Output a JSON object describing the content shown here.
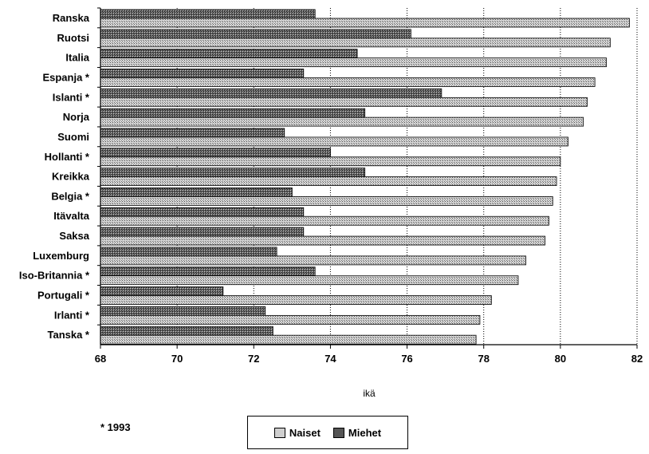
{
  "chart_data": {
    "type": "bar",
    "orientation": "horizontal",
    "xlabel": "ikä",
    "xlim": [
      68,
      82
    ],
    "xticks": [
      68,
      70,
      72,
      74,
      76,
      78,
      80,
      82
    ],
    "grid": "vertical dotted",
    "categories": [
      "Ranska",
      "Ruotsi",
      "Italia",
      "Espanja *",
      "Islanti *",
      "Norja",
      "Suomi",
      "Hollanti *",
      "Kreikka",
      "Belgia *",
      "Itävalta",
      "Saksa",
      "Luxemburg",
      "Iso-Britannia *",
      "Portugali *",
      "Irlanti *",
      "Tanska *"
    ],
    "series": [
      {
        "name": "Naiset",
        "color": "#b8b8b8",
        "values": [
          81.8,
          81.3,
          81.2,
          80.9,
          80.7,
          80.6,
          80.2,
          80.0,
          79.9,
          79.8,
          79.7,
          79.6,
          79.1,
          78.9,
          78.2,
          77.9,
          77.8
        ]
      },
      {
        "name": "Miehet",
        "color": "#4a4a4a",
        "values": [
          73.6,
          76.1,
          74.7,
          73.3,
          76.9,
          74.9,
          72.8,
          74.0,
          74.9,
          73.0,
          73.3,
          73.3,
          72.6,
          73.6,
          71.2,
          72.3,
          72.5
        ]
      }
    ],
    "legend_position": "bottom"
  },
  "footnote": "* 1993"
}
